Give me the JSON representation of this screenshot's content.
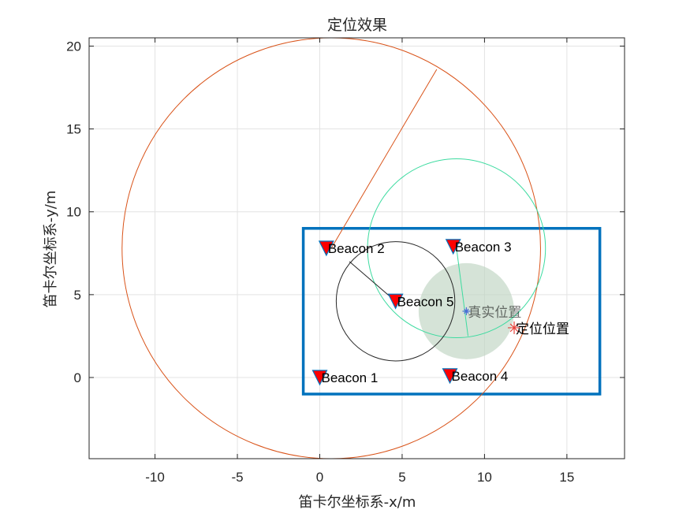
{
  "chart_data": {
    "type": "scatter",
    "title": "定位效果",
    "xlabel": "笛卡尔坐标系-x/m",
    "ylabel": "笛卡尔坐标系-y/m",
    "xlim": [
      -14,
      18.5
    ],
    "ylim": [
      -4.9,
      20.5
    ],
    "xticks": [
      -10,
      -5,
      0,
      5,
      10,
      15
    ],
    "yticks": [
      0,
      5,
      10,
      15,
      20
    ],
    "grid": true,
    "boundary": {
      "x": [
        -1,
        17
      ],
      "y": [
        -1,
        9
      ],
      "color": "#0072BD"
    },
    "beacons": [
      {
        "label": "Beacon 1",
        "x": 0,
        "y": 0
      },
      {
        "label": "Beacon 2",
        "x": 0.4,
        "y": 7.8
      },
      {
        "label": "Beacon 3",
        "x": 8.1,
        "y": 7.9
      },
      {
        "label": "Beacon 4",
        "x": 7.9,
        "y": 0.1
      },
      {
        "label": "Beacon 5",
        "x": 4.6,
        "y": 4.6
      }
    ],
    "beacon_color": "#FF0000",
    "circles": [
      {
        "cx": 0.7,
        "cy": 7.8,
        "r": 12.7,
        "color": "#D95319",
        "line_to": [
          7.1,
          18.6
        ]
      },
      {
        "cx": 8.3,
        "cy": 7.8,
        "r": 5.4,
        "color": "#3DDBA0",
        "line_to": [
          9,
          2.5
        ]
      },
      {
        "cx": 4.6,
        "cy": 4.6,
        "r": 3.6,
        "color": "#262626",
        "line_to": [
          1.8,
          7.0
        ]
      }
    ],
    "error_region": {
      "cx": 8.9,
      "cy": 4.0,
      "r": 2.9,
      "color": "#BFD4C2"
    },
    "true_position": {
      "label": "真实位置",
      "x": 8.9,
      "y": 4.0,
      "color": "#4B6FD6"
    },
    "estimated_position": {
      "label": "定位位置",
      "x": 11.8,
      "y": 3.0,
      "color": "#E8413A"
    }
  }
}
